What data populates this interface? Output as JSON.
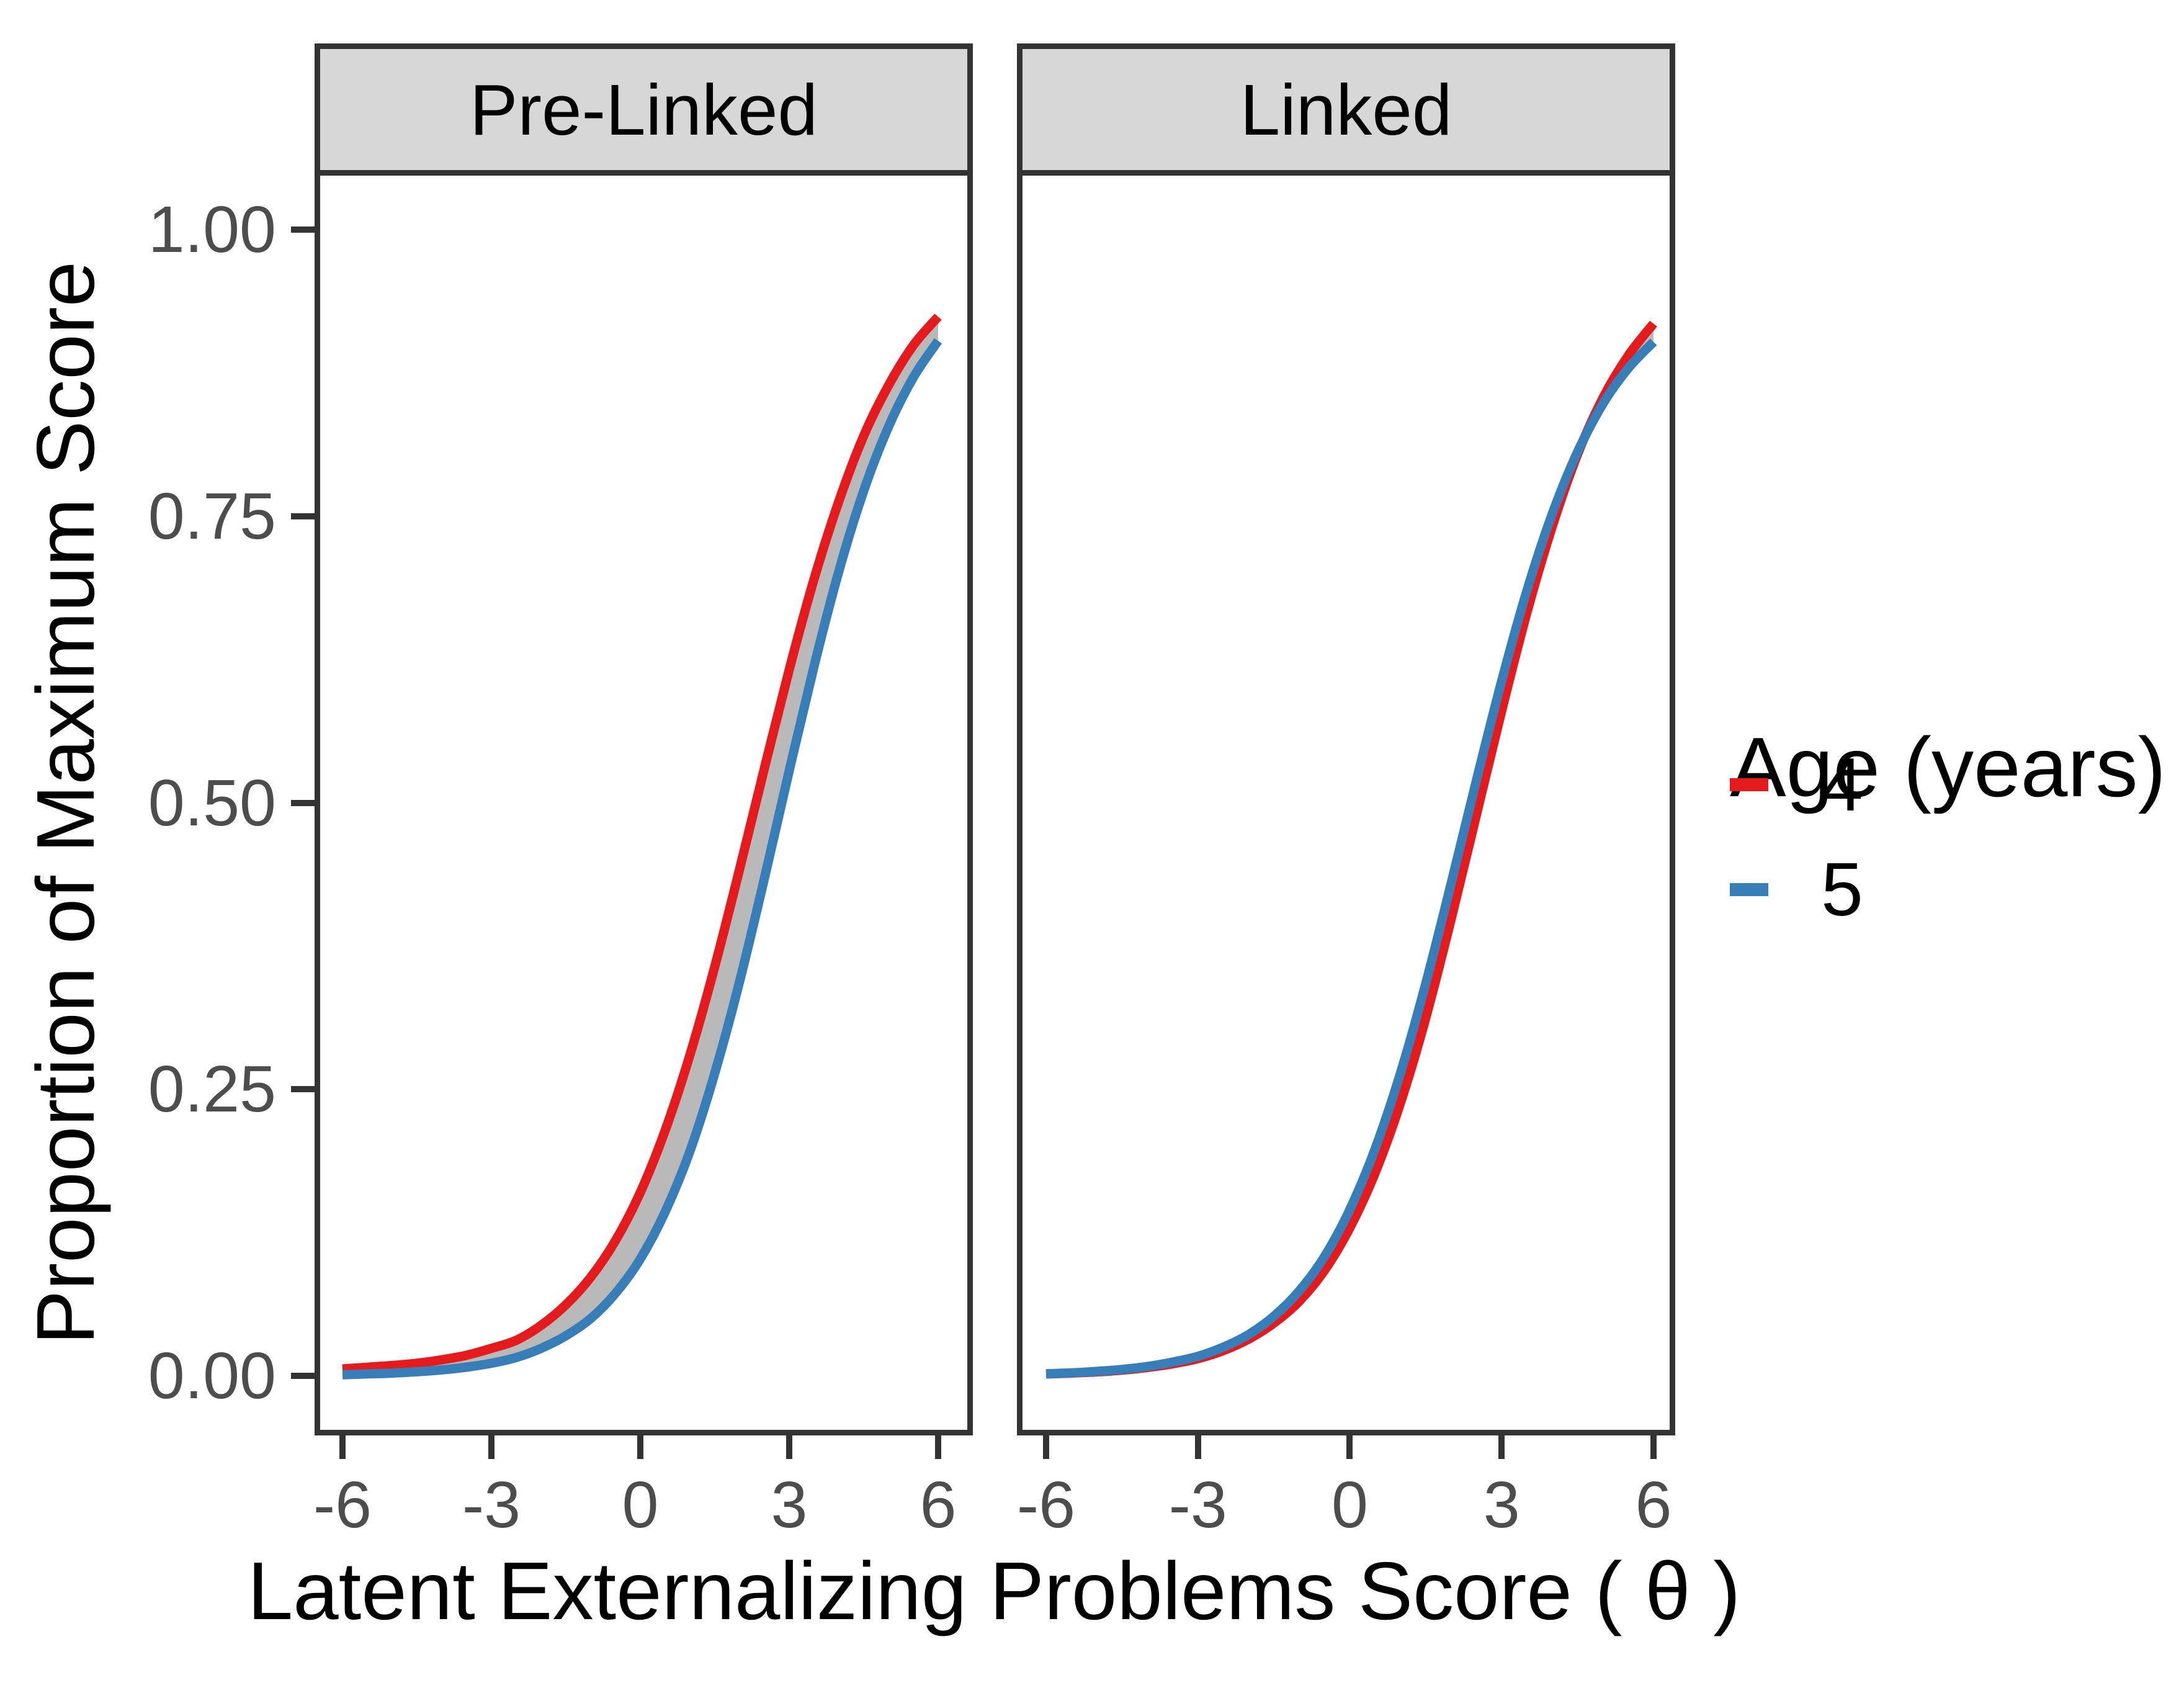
{
  "chart_data": {
    "type": "line",
    "title": "",
    "xlabel": "Latent Externalizing Problems Score ( θ )",
    "ylabel": "Proportion of Maximum Score",
    "x_ticks": [
      "-6",
      "-3",
      "0",
      "3",
      "6"
    ],
    "y_ticks": [
      "0.00",
      "0.25",
      "0.50",
      "0.75",
      "1.00"
    ],
    "xlim": [
      -6,
      6
    ],
    "ylim": [
      0,
      1
    ],
    "grid": "off",
    "legend_position": "right",
    "x": [
      -6,
      -5.5,
      -5,
      -4.5,
      -4,
      -3.5,
      -3,
      -2.5,
      -2,
      -1.5,
      -1,
      -0.5,
      0,
      0.5,
      1,
      1.5,
      2,
      2.5,
      3,
      3.5,
      4,
      4.5,
      5,
      5.5,
      6
    ],
    "facets": [
      {
        "label": "Pre-Linked",
        "ribbon_between_series": true,
        "series": [
          {
            "name": "4",
            "color": "#E41A1C",
            "values": [
              0.006,
              0.0075,
              0.009,
              0.011,
              0.014,
              0.018,
              0.024,
              0.031,
              0.044,
              0.062,
              0.086,
              0.118,
              0.16,
              0.214,
              0.28,
              0.357,
              0.442,
              0.53,
              0.616,
              0.695,
              0.763,
              0.82,
              0.864,
              0.899,
              0.924
            ]
          },
          {
            "name": "5",
            "color": "#377EB8",
            "values": [
              0.001,
              0.0017,
              0.0024,
              0.0036,
              0.0052,
              0.0076,
              0.011,
              0.016,
              0.024,
              0.035,
              0.05,
              0.072,
              0.102,
              0.143,
              0.196,
              0.264,
              0.344,
              0.434,
              0.528,
              0.619,
              0.702,
              0.772,
              0.828,
              0.871,
              0.903
            ]
          }
        ]
      },
      {
        "label": "Linked",
        "ribbon_between_series": true,
        "series": [
          {
            "name": "4",
            "color": "#E41A1C",
            "values": [
              0.0016,
              0.0024,
              0.0034,
              0.005,
              0.0073,
              0.0105,
              0.015,
              0.022,
              0.032,
              0.046,
              0.065,
              0.092,
              0.129,
              0.177,
              0.238,
              0.312,
              0.398,
              0.489,
              0.58,
              0.666,
              0.741,
              0.804,
              0.853,
              0.89,
              0.918
            ]
          },
          {
            "name": "5",
            "color": "#377EB8",
            "values": [
              0.0018,
              0.0026,
              0.0039,
              0.0056,
              0.0082,
              0.012,
              0.017,
              0.025,
              0.036,
              0.052,
              0.074,
              0.104,
              0.145,
              0.198,
              0.264,
              0.342,
              0.429,
              0.519,
              0.606,
              0.685,
              0.752,
              0.806,
              0.848,
              0.879,
              0.902
            ]
          }
        ]
      }
    ]
  },
  "legend": {
    "title": "Age (years)",
    "entries": [
      {
        "label": "4",
        "color": "#E41A1C"
      },
      {
        "label": "5",
        "color": "#377EB8"
      }
    ]
  },
  "colors": {
    "series_red": "#E41A1C",
    "series_blue": "#377EB8",
    "ribbon_gray": "#B9B9B9",
    "strip_background": "#D7D7D7",
    "panel_border": "#333333",
    "tick_text": "#4D4D4D",
    "title_text": "#000000"
  }
}
